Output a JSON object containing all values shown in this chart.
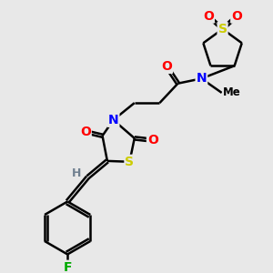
{
  "background_color": "#e8e8e8",
  "atom_colors": {
    "C": "#000000",
    "N": "#0000ff",
    "O": "#ff0000",
    "S": "#cccc00",
    "F": "#00aa00",
    "H": "#708090"
  },
  "bond_color": "#000000",
  "bond_width": 1.8,
  "font_size_atom": 10
}
